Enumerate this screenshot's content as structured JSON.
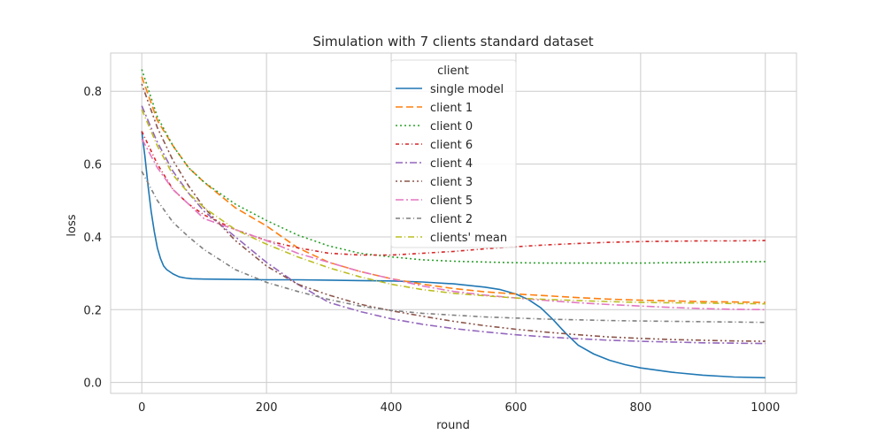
{
  "chart_data": {
    "type": "line",
    "title": "Simulation with 7 clients standard dataset",
    "xlabel": "round",
    "ylabel": "loss",
    "xlim": [
      -50,
      1050
    ],
    "ylim": [
      -0.03,
      0.905
    ],
    "xticks": [
      0,
      200,
      400,
      600,
      800,
      1000
    ],
    "yticks": [
      0.0,
      0.2,
      0.4,
      0.6,
      0.8
    ],
    "xtick_labels": [
      "0",
      "200",
      "400",
      "600",
      "800",
      "1000"
    ],
    "ytick_labels": [
      "0.0",
      "0.2",
      "0.4",
      "0.6",
      "0.8"
    ],
    "grid": true,
    "legend": {
      "title": "client",
      "position": "top-center"
    },
    "series": [
      {
        "name": "single model",
        "color": "#1f77b4",
        "dash": "solid",
        "x": [
          0,
          5,
          10,
          15,
          20,
          25,
          30,
          35,
          40,
          50,
          60,
          70,
          80,
          100,
          150,
          200,
          250,
          300,
          350,
          400,
          450,
          500,
          550,
          575,
          600,
          620,
          640,
          660,
          680,
          700,
          725,
          750,
          775,
          800,
          850,
          900,
          950,
          1000
        ],
        "y": [
          0.69,
          0.62,
          0.54,
          0.47,
          0.415,
          0.37,
          0.34,
          0.32,
          0.31,
          0.298,
          0.29,
          0.287,
          0.285,
          0.284,
          0.283,
          0.282,
          0.282,
          0.281,
          0.28,
          0.279,
          0.276,
          0.271,
          0.262,
          0.255,
          0.243,
          0.228,
          0.205,
          0.172,
          0.135,
          0.102,
          0.078,
          0.061,
          0.049,
          0.04,
          0.028,
          0.02,
          0.015,
          0.013
        ]
      },
      {
        "name": "client 1",
        "color": "#ff7f0e",
        "dash": "8,4",
        "x": [
          0,
          25,
          50,
          75,
          100,
          150,
          200,
          250,
          300,
          350,
          400,
          450,
          500,
          550,
          600,
          650,
          700,
          750,
          800,
          850,
          900,
          950,
          1000
        ],
        "y": [
          0.84,
          0.72,
          0.65,
          0.59,
          0.55,
          0.48,
          0.43,
          0.37,
          0.33,
          0.305,
          0.285,
          0.27,
          0.258,
          0.249,
          0.243,
          0.238,
          0.233,
          0.229,
          0.226,
          0.224,
          0.222,
          0.221,
          0.22
        ]
      },
      {
        "name": "client 0",
        "color": "#2ca02c",
        "dash": "2,3",
        "x": [
          0,
          25,
          50,
          75,
          100,
          150,
          200,
          250,
          300,
          350,
          400,
          450,
          500,
          550,
          600,
          650,
          700,
          750,
          800,
          850,
          900,
          950,
          1000
        ],
        "y": [
          0.86,
          0.73,
          0.65,
          0.59,
          0.55,
          0.49,
          0.445,
          0.405,
          0.375,
          0.355,
          0.345,
          0.337,
          0.333,
          0.331,
          0.329,
          0.328,
          0.328,
          0.328,
          0.328,
          0.329,
          0.33,
          0.331,
          0.332
        ]
      },
      {
        "name": "client 6",
        "color": "#d62728",
        "dash": "4,3,1,3",
        "x": [
          0,
          25,
          50,
          75,
          100,
          150,
          200,
          250,
          300,
          350,
          400,
          450,
          500,
          550,
          600,
          650,
          700,
          750,
          800,
          850,
          900,
          950,
          1000
        ],
        "y": [
          0.69,
          0.6,
          0.53,
          0.49,
          0.46,
          0.42,
          0.39,
          0.37,
          0.355,
          0.35,
          0.35,
          0.355,
          0.36,
          0.367,
          0.373,
          0.378,
          0.382,
          0.385,
          0.387,
          0.388,
          0.389,
          0.389,
          0.39
        ]
      },
      {
        "name": "client 4",
        "color": "#9467bd",
        "dash": "8,3,2,3",
        "x": [
          0,
          25,
          50,
          75,
          100,
          150,
          200,
          250,
          300,
          350,
          400,
          450,
          500,
          550,
          600,
          650,
          700,
          750,
          800,
          850,
          900,
          950,
          1000
        ],
        "y": [
          0.76,
          0.66,
          0.58,
          0.52,
          0.47,
          0.4,
          0.33,
          0.27,
          0.22,
          0.195,
          0.175,
          0.16,
          0.148,
          0.139,
          0.131,
          0.125,
          0.12,
          0.116,
          0.113,
          0.111,
          0.109,
          0.108,
          0.107
        ]
      },
      {
        "name": "client 3",
        "color": "#8c564b",
        "dash": "2,3,2,3,6,3",
        "x": [
          0,
          25,
          50,
          75,
          100,
          150,
          200,
          250,
          300,
          350,
          400,
          450,
          500,
          550,
          600,
          650,
          700,
          750,
          800,
          850,
          900,
          950,
          1000
        ],
        "y": [
          0.82,
          0.7,
          0.61,
          0.54,
          0.48,
          0.39,
          0.32,
          0.27,
          0.24,
          0.215,
          0.197,
          0.182,
          0.168,
          0.156,
          0.146,
          0.138,
          0.131,
          0.125,
          0.121,
          0.118,
          0.116,
          0.114,
          0.113
        ]
      },
      {
        "name": "client 5",
        "color": "#e377c2",
        "dash": "9,3,2,3",
        "x": [
          0,
          25,
          50,
          75,
          100,
          150,
          200,
          250,
          300,
          350,
          400,
          450,
          500,
          550,
          600,
          650,
          700,
          750,
          800,
          850,
          900,
          950,
          1000
        ],
        "y": [
          0.67,
          0.59,
          0.53,
          0.49,
          0.45,
          0.42,
          0.39,
          0.355,
          0.33,
          0.305,
          0.285,
          0.265,
          0.25,
          0.24,
          0.232,
          0.225,
          0.219,
          0.214,
          0.21,
          0.206,
          0.203,
          0.201,
          0.2
        ]
      },
      {
        "name": "client 2",
        "color": "#7f7f7f",
        "dash": "5,3,1,3",
        "x": [
          0,
          25,
          50,
          75,
          100,
          150,
          200,
          250,
          300,
          350,
          400,
          450,
          500,
          550,
          600,
          650,
          700,
          750,
          800,
          850,
          900,
          950,
          1000
        ],
        "y": [
          0.58,
          0.5,
          0.44,
          0.4,
          0.365,
          0.31,
          0.275,
          0.25,
          0.228,
          0.21,
          0.198,
          0.19,
          0.185,
          0.18,
          0.177,
          0.174,
          0.172,
          0.17,
          0.169,
          0.168,
          0.167,
          0.166,
          0.165
        ]
      },
      {
        "name": "clients' mean",
        "color": "#bcbd22",
        "dash": "7,3,1,3",
        "x": [
          0,
          25,
          50,
          75,
          100,
          150,
          200,
          250,
          300,
          350,
          400,
          450,
          500,
          550,
          600,
          650,
          700,
          750,
          800,
          850,
          900,
          950,
          1000
        ],
        "y": [
          0.75,
          0.65,
          0.57,
          0.52,
          0.48,
          0.42,
          0.38,
          0.345,
          0.315,
          0.29,
          0.27,
          0.255,
          0.245,
          0.238,
          0.232,
          0.228,
          0.225,
          0.222,
          0.22,
          0.219,
          0.218,
          0.217,
          0.216
        ]
      }
    ]
  }
}
